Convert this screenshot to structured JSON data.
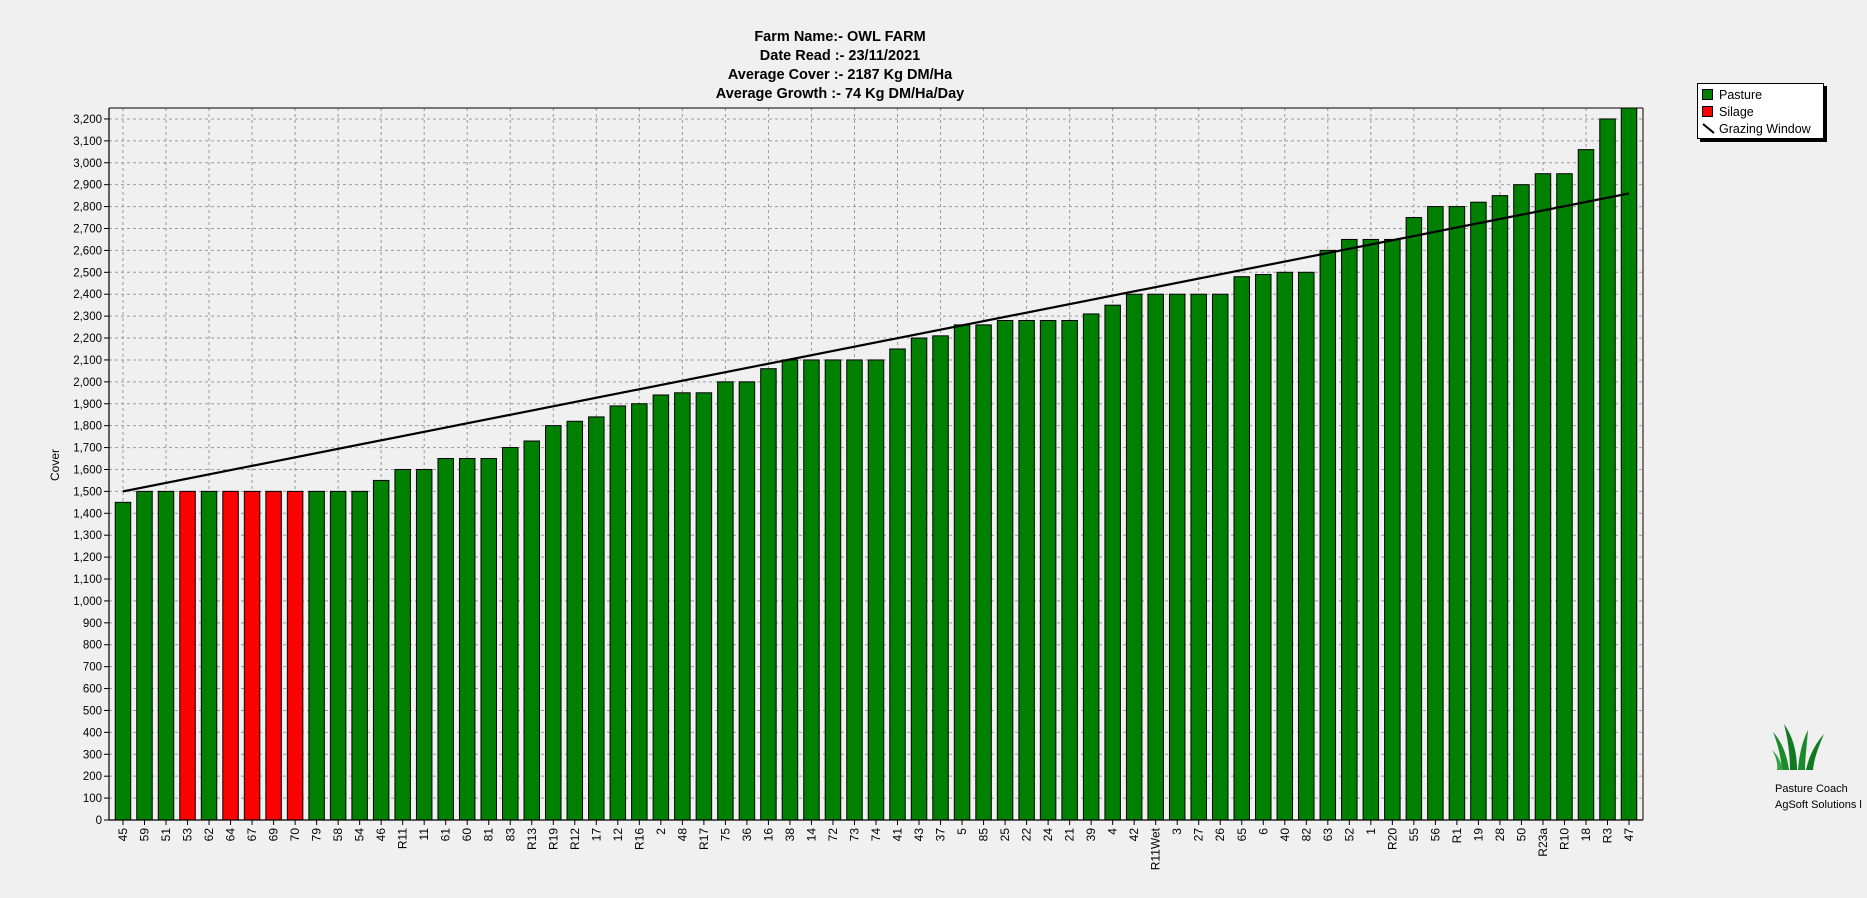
{
  "title_lines": [
    "Farm Name:- OWL FARM",
    "Date Read :-  23/11/2021",
    "Average Cover :-  2187 Kg DM/Ha",
    "Average Growth :-  74 Kg DM/Ha/Day"
  ],
  "legend": {
    "pasture": "Pasture",
    "silage": "Silage",
    "window": "Grazing Window"
  },
  "brand": {
    "line1": "Pasture Coach",
    "line2": "AgSoft Solutions l"
  },
  "colors": {
    "pasture": "#008000",
    "silage": "#ff0000",
    "window": "#000000"
  },
  "chart_data": {
    "type": "bar",
    "ylabel": "Cover",
    "ylim": [
      0,
      3250
    ],
    "ytick_step": 100,
    "grid": true,
    "legend_position": "top-right",
    "categories": [
      "45",
      "59",
      "51",
      "53",
      "62",
      "64",
      "67",
      "69",
      "70",
      "79",
      "58",
      "54",
      "46",
      "R11",
      "11",
      "61",
      "60",
      "81",
      "83",
      "R13",
      "R19",
      "R12",
      "17",
      "12",
      "R16",
      "2",
      "48",
      "R17",
      "75",
      "36",
      "16",
      "38",
      "14",
      "72",
      "73",
      "74",
      "41",
      "43",
      "37",
      "5",
      "85",
      "25",
      "22",
      "24",
      "21",
      "39",
      "4",
      "42",
      "R11Wet",
      "3",
      "27",
      "26",
      "65",
      "6",
      "40",
      "82",
      "63",
      "52",
      "1",
      "R20",
      "55",
      "56",
      "R1",
      "19",
      "28",
      "50",
      "R23a",
      "R10",
      "18",
      "R3",
      "47"
    ],
    "values": [
      1450,
      1500,
      1500,
      1500,
      1500,
      1500,
      1500,
      1500,
      1500,
      1500,
      1500,
      1500,
      1550,
      1600,
      1600,
      1650,
      1650,
      1650,
      1700,
      1730,
      1800,
      1820,
      1840,
      1890,
      1900,
      1940,
      1950,
      1950,
      2000,
      2000,
      2060,
      2100,
      2100,
      2100,
      2100,
      2100,
      2150,
      2200,
      2210,
      2260,
      2260,
      2280,
      2280,
      2280,
      2280,
      2310,
      2350,
      2400,
      2400,
      2400,
      2400,
      2400,
      2480,
      2490,
      2500,
      2500,
      2600,
      2650,
      2650,
      2650,
      2750,
      2800,
      2800,
      2820,
      2850,
      2900,
      2950,
      2950,
      3060,
      3200,
      3250
    ],
    "silage": [
      "53",
      "64",
      "67",
      "69",
      "70"
    ],
    "grazing_window": {
      "start": 1500,
      "end": 2860
    }
  }
}
